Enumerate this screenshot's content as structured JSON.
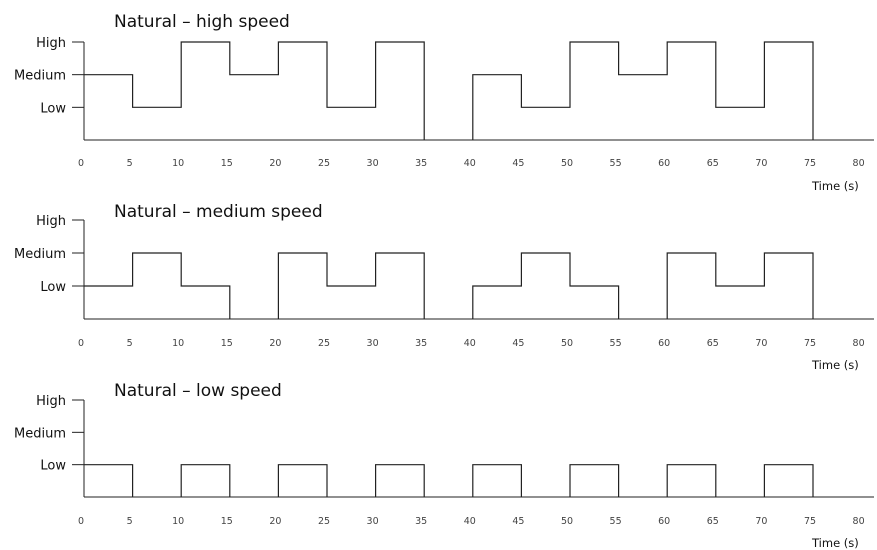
{
  "chart_data": [
    {
      "type": "line",
      "step": true,
      "title": "Natural – high speed",
      "xlabel": "Time (s)",
      "ylabel": "",
      "y_levels": [
        "Low",
        "Medium",
        "High"
      ],
      "x_ticks": [
        "0",
        "5",
        "10",
        "15",
        "20",
        "25",
        "30",
        "35",
        "40",
        "45",
        "50",
        "55",
        "60",
        "65",
        "70",
        "75",
        "80"
      ],
      "xlim": [
        0,
        80
      ],
      "segments": [
        {
          "start": 0,
          "end": 5,
          "level": "Medium"
        },
        {
          "start": 5,
          "end": 10,
          "level": "Low"
        },
        {
          "start": 10,
          "end": 15,
          "level": "High"
        },
        {
          "start": 15,
          "end": 20,
          "level": "Medium"
        },
        {
          "start": 20,
          "end": 25,
          "level": "High"
        },
        {
          "start": 25,
          "end": 30,
          "level": "Low"
        },
        {
          "start": 30,
          "end": 35,
          "level": "High"
        },
        {
          "start": 40,
          "end": 45,
          "level": "Medium"
        },
        {
          "start": 45,
          "end": 50,
          "level": "Low"
        },
        {
          "start": 50,
          "end": 55,
          "level": "High"
        },
        {
          "start": 55,
          "end": 60,
          "level": "Medium"
        },
        {
          "start": 60,
          "end": 65,
          "level": "High"
        },
        {
          "start": 65,
          "end": 70,
          "level": "Low"
        },
        {
          "start": 70,
          "end": 75,
          "level": "High"
        }
      ]
    },
    {
      "type": "line",
      "step": true,
      "title": "Natural – medium speed",
      "xlabel": "Time (s)",
      "ylabel": "",
      "y_levels": [
        "Low",
        "Medium",
        "High"
      ],
      "x_ticks": [
        "0",
        "5",
        "10",
        "15",
        "20",
        "25",
        "30",
        "35",
        "40",
        "45",
        "50",
        "55",
        "60",
        "65",
        "70",
        "75",
        "80"
      ],
      "xlim": [
        0,
        80
      ],
      "segments": [
        {
          "start": 0,
          "end": 5,
          "level": "Low"
        },
        {
          "start": 5,
          "end": 10,
          "level": "Medium"
        },
        {
          "start": 10,
          "end": 15,
          "level": "Low"
        },
        {
          "start": 20,
          "end": 25,
          "level": "Medium"
        },
        {
          "start": 25,
          "end": 30,
          "level": "Low"
        },
        {
          "start": 30,
          "end": 35,
          "level": "Medium"
        },
        {
          "start": 40,
          "end": 45,
          "level": "Low"
        },
        {
          "start": 45,
          "end": 50,
          "level": "Medium"
        },
        {
          "start": 50,
          "end": 55,
          "level": "Low"
        },
        {
          "start": 60,
          "end": 65,
          "level": "Medium"
        },
        {
          "start": 65,
          "end": 70,
          "level": "Low"
        },
        {
          "start": 70,
          "end": 75,
          "level": "Medium"
        }
      ]
    },
    {
      "type": "line",
      "step": true,
      "title": "Natural – low speed",
      "xlabel": "Time (s)",
      "ylabel": "",
      "y_levels": [
        "Low",
        "Medium",
        "High"
      ],
      "x_ticks": [
        "0",
        "5",
        "10",
        "15",
        "20",
        "25",
        "30",
        "35",
        "40",
        "45",
        "50",
        "55",
        "60",
        "65",
        "70",
        "75",
        "80"
      ],
      "xlim": [
        0,
        80
      ],
      "segments": [
        {
          "start": 0,
          "end": 5,
          "level": "Low"
        },
        {
          "start": 10,
          "end": 15,
          "level": "Low"
        },
        {
          "start": 20,
          "end": 25,
          "level": "Low"
        },
        {
          "start": 30,
          "end": 35,
          "level": "Low"
        },
        {
          "start": 40,
          "end": 45,
          "level": "Low"
        },
        {
          "start": 50,
          "end": 55,
          "level": "Low"
        },
        {
          "start": 60,
          "end": 65,
          "level": "Low"
        },
        {
          "start": 70,
          "end": 75,
          "level": "Low"
        }
      ]
    }
  ]
}
